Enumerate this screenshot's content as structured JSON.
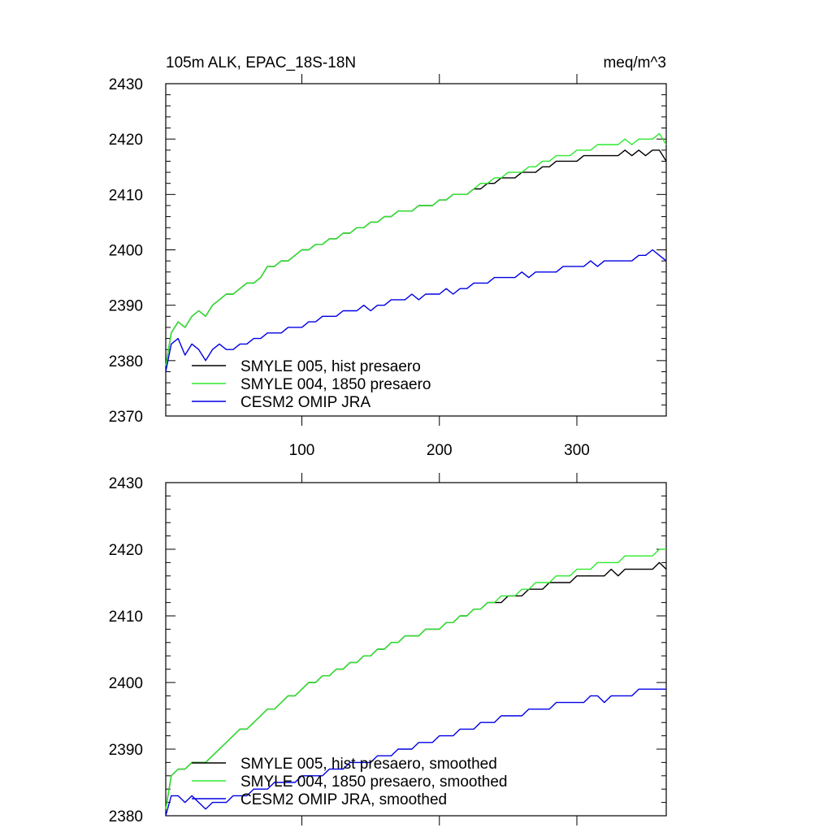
{
  "chart_data": [
    {
      "type": "line",
      "title_left": "105m ALK, EPAC_18S-18N",
      "title_right": "meq/m^3",
      "xlim": [
        1,
        365
      ],
      "ylim": [
        2370,
        2430
      ],
      "x_ticks": [
        100,
        200,
        300
      ],
      "x_tick_labels": [
        "100",
        "200",
        "300"
      ],
      "y_ticks": [
        2370,
        2380,
        2390,
        2400,
        2410,
        2420,
        2430
      ],
      "y_tick_labels": [
        "2370",
        "2380",
        "2390",
        "2400",
        "2410",
        "2420",
        "2430"
      ],
      "legend_position": "bottom-left",
      "series": [
        {
          "name": "SMYLE 005, hist presaero",
          "color": "#000000",
          "x": [
            1,
            5,
            10,
            15,
            20,
            25,
            30,
            35,
            40,
            45,
            50,
            55,
            60,
            65,
            70,
            75,
            80,
            85,
            90,
            95,
            100,
            105,
            110,
            115,
            120,
            125,
            130,
            135,
            140,
            145,
            150,
            155,
            160,
            165,
            170,
            175,
            180,
            185,
            190,
            195,
            200,
            205,
            210,
            215,
            220,
            225,
            230,
            235,
            240,
            245,
            250,
            255,
            260,
            265,
            270,
            275,
            280,
            285,
            290,
            295,
            300,
            305,
            310,
            315,
            320,
            325,
            330,
            335,
            340,
            345,
            350,
            355,
            360,
            365
          ],
          "values": [
            2379,
            2385,
            2387,
            2386,
            2388,
            2389,
            2388,
            2390,
            2391,
            2392,
            2392,
            2393,
            2394,
            2394,
            2395,
            2397,
            2397,
            2398,
            2398,
            2399,
            2400,
            2400,
            2401,
            2401,
            2402,
            2402,
            2403,
            2403,
            2404,
            2404,
            2405,
            2405,
            2406,
            2406,
            2407,
            2407,
            2407,
            2408,
            2408,
            2408,
            2409,
            2409,
            2410,
            2410,
            2410,
            2411,
            2411,
            2412,
            2412,
            2413,
            2413,
            2413,
            2414,
            2414,
            2414,
            2415,
            2415,
            2416,
            2416,
            2416,
            2416,
            2417,
            2417,
            2417,
            2417,
            2417,
            2417,
            2418,
            2417,
            2418,
            2417,
            2418,
            2418,
            2416
          ]
        },
        {
          "name": "SMYLE 004, 1850 presaero",
          "color": "#2ee82e",
          "x": [
            1,
            5,
            10,
            15,
            20,
            25,
            30,
            35,
            40,
            45,
            50,
            55,
            60,
            65,
            70,
            75,
            80,
            85,
            90,
            95,
            100,
            105,
            110,
            115,
            120,
            125,
            130,
            135,
            140,
            145,
            150,
            155,
            160,
            165,
            170,
            175,
            180,
            185,
            190,
            195,
            200,
            205,
            210,
            215,
            220,
            225,
            230,
            235,
            240,
            245,
            250,
            255,
            260,
            265,
            270,
            275,
            280,
            285,
            290,
            295,
            300,
            305,
            310,
            315,
            320,
            325,
            330,
            335,
            340,
            345,
            350,
            355,
            360,
            365
          ],
          "values": [
            2379,
            2385,
            2387,
            2386,
            2388,
            2389,
            2388,
            2390,
            2391,
            2392,
            2392,
            2393,
            2394,
            2394,
            2395,
            2397,
            2397,
            2398,
            2398,
            2399,
            2400,
            2400,
            2401,
            2401,
            2402,
            2402,
            2403,
            2403,
            2404,
            2404,
            2405,
            2405,
            2406,
            2406,
            2407,
            2407,
            2407,
            2408,
            2408,
            2408,
            2409,
            2409,
            2410,
            2410,
            2410,
            2411,
            2412,
            2412,
            2413,
            2413,
            2414,
            2414,
            2414,
            2415,
            2415,
            2416,
            2416,
            2417,
            2417,
            2417,
            2418,
            2418,
            2418,
            2419,
            2419,
            2419,
            2419,
            2420,
            2419,
            2420,
            2420,
            2420,
            2421,
            2419
          ]
        },
        {
          "name": "CESM2 OMIP JRA",
          "color": "#0000e6",
          "x": [
            1,
            5,
            10,
            15,
            20,
            25,
            30,
            35,
            40,
            45,
            50,
            55,
            60,
            65,
            70,
            75,
            80,
            85,
            90,
            95,
            100,
            105,
            110,
            115,
            120,
            125,
            130,
            135,
            140,
            145,
            150,
            155,
            160,
            165,
            170,
            175,
            180,
            185,
            190,
            195,
            200,
            205,
            210,
            215,
            220,
            225,
            230,
            235,
            240,
            245,
            250,
            255,
            260,
            265,
            270,
            275,
            280,
            285,
            290,
            295,
            300,
            305,
            310,
            315,
            320,
            325,
            330,
            335,
            340,
            345,
            350,
            355,
            360,
            365
          ],
          "values": [
            2378,
            2383,
            2384,
            2381,
            2383,
            2382,
            2380,
            2382,
            2383,
            2382,
            2382,
            2383,
            2383,
            2384,
            2384,
            2385,
            2385,
            2385,
            2386,
            2386,
            2386,
            2387,
            2387,
            2388,
            2388,
            2388,
            2389,
            2389,
            2389,
            2390,
            2389,
            2390,
            2390,
            2391,
            2391,
            2391,
            2392,
            2391,
            2392,
            2392,
            2392,
            2393,
            2392,
            2393,
            2393,
            2394,
            2394,
            2394,
            2395,
            2395,
            2395,
            2395,
            2396,
            2395,
            2396,
            2396,
            2396,
            2396,
            2397,
            2397,
            2397,
            2397,
            2398,
            2397,
            2398,
            2398,
            2398,
            2398,
            2398,
            2399,
            2399,
            2400,
            2399,
            2398
          ]
        }
      ]
    },
    {
      "type": "line",
      "xlim": [
        1,
        365
      ],
      "ylim": [
        2380,
        2430
      ],
      "x_ticks": [
        100,
        200,
        300
      ],
      "y_ticks": [
        2380,
        2390,
        2400,
        2410,
        2420,
        2430
      ],
      "y_tick_labels": [
        "2380",
        "2390",
        "2400",
        "2410",
        "2420",
        "2430"
      ],
      "legend_position": "bottom-left",
      "series": [
        {
          "name": "SMYLE 005, hist presaero, smoothed",
          "color": "#000000",
          "x": [
            1,
            5,
            10,
            15,
            20,
            25,
            30,
            35,
            40,
            45,
            50,
            55,
            60,
            65,
            70,
            75,
            80,
            85,
            90,
            95,
            100,
            105,
            110,
            115,
            120,
            125,
            130,
            135,
            140,
            145,
            150,
            155,
            160,
            165,
            170,
            175,
            180,
            185,
            190,
            195,
            200,
            205,
            210,
            215,
            220,
            225,
            230,
            235,
            240,
            245,
            250,
            255,
            260,
            265,
            270,
            275,
            280,
            285,
            290,
            295,
            300,
            305,
            310,
            315,
            320,
            325,
            330,
            335,
            340,
            345,
            350,
            355,
            360,
            365
          ],
          "values": [
            2381,
            2386,
            2387,
            2387,
            2388,
            2388,
            2388,
            2389,
            2390,
            2391,
            2392,
            2393,
            2393,
            2394,
            2395,
            2396,
            2396,
            2397,
            2398,
            2398,
            2399,
            2400,
            2400,
            2401,
            2401,
            2402,
            2402,
            2403,
            2403,
            2404,
            2404,
            2405,
            2405,
            2406,
            2406,
            2407,
            2407,
            2407,
            2408,
            2408,
            2408,
            2409,
            2409,
            2410,
            2410,
            2411,
            2411,
            2412,
            2412,
            2412,
            2413,
            2413,
            2413,
            2414,
            2414,
            2414,
            2415,
            2415,
            2415,
            2415,
            2416,
            2416,
            2416,
            2416,
            2416,
            2417,
            2416,
            2417,
            2417,
            2417,
            2417,
            2417,
            2418,
            2417
          ]
        },
        {
          "name": "SMYLE 004, 1850 presaero, smoothed",
          "color": "#2ee82e",
          "x": [
            1,
            5,
            10,
            15,
            20,
            25,
            30,
            35,
            40,
            45,
            50,
            55,
            60,
            65,
            70,
            75,
            80,
            85,
            90,
            95,
            100,
            105,
            110,
            115,
            120,
            125,
            130,
            135,
            140,
            145,
            150,
            155,
            160,
            165,
            170,
            175,
            180,
            185,
            190,
            195,
            200,
            205,
            210,
            215,
            220,
            225,
            230,
            235,
            240,
            245,
            250,
            255,
            260,
            265,
            270,
            275,
            280,
            285,
            290,
            295,
            300,
            305,
            310,
            315,
            320,
            325,
            330,
            335,
            340,
            345,
            350,
            355,
            360,
            365
          ],
          "values": [
            2381,
            2386,
            2387,
            2387,
            2388,
            2388,
            2388,
            2389,
            2390,
            2391,
            2392,
            2393,
            2393,
            2394,
            2395,
            2396,
            2396,
            2397,
            2398,
            2398,
            2399,
            2400,
            2400,
            2401,
            2401,
            2402,
            2402,
            2403,
            2403,
            2404,
            2404,
            2405,
            2405,
            2406,
            2406,
            2407,
            2407,
            2407,
            2408,
            2408,
            2408,
            2409,
            2409,
            2410,
            2410,
            2411,
            2411,
            2412,
            2412,
            2413,
            2413,
            2413,
            2414,
            2414,
            2415,
            2415,
            2415,
            2416,
            2416,
            2416,
            2417,
            2417,
            2417,
            2418,
            2418,
            2418,
            2418,
            2419,
            2419,
            2419,
            2419,
            2419,
            2420,
            2420
          ]
        },
        {
          "name": "CESM2 OMIP JRA, smoothed",
          "color": "#0000e6",
          "x": [
            1,
            5,
            10,
            15,
            20,
            25,
            30,
            35,
            40,
            45,
            50,
            55,
            60,
            65,
            70,
            75,
            80,
            85,
            90,
            95,
            100,
            105,
            110,
            115,
            120,
            125,
            130,
            135,
            140,
            145,
            150,
            155,
            160,
            165,
            170,
            175,
            180,
            185,
            190,
            195,
            200,
            205,
            210,
            215,
            220,
            225,
            230,
            235,
            240,
            245,
            250,
            255,
            260,
            265,
            270,
            275,
            280,
            285,
            290,
            295,
            300,
            305,
            310,
            315,
            320,
            325,
            330,
            335,
            340,
            345,
            350,
            355,
            360,
            365
          ],
          "values": [
            2380,
            2383,
            2383,
            2382,
            2383,
            2382,
            2381,
            2382,
            2382,
            2382,
            2383,
            2383,
            2383,
            2384,
            2384,
            2384,
            2385,
            2385,
            2385,
            2385,
            2386,
            2386,
            2386,
            2386,
            2387,
            2387,
            2387,
            2388,
            2388,
            2388,
            2388,
            2389,
            2389,
            2389,
            2390,
            2390,
            2390,
            2391,
            2391,
            2391,
            2392,
            2392,
            2392,
            2393,
            2393,
            2393,
            2394,
            2394,
            2394,
            2395,
            2395,
            2395,
            2395,
            2396,
            2396,
            2396,
            2396,
            2397,
            2397,
            2397,
            2397,
            2397,
            2398,
            2398,
            2397,
            2398,
            2398,
            2398,
            2398,
            2399,
            2399,
            2399,
            2399,
            2399
          ]
        }
      ]
    }
  ]
}
